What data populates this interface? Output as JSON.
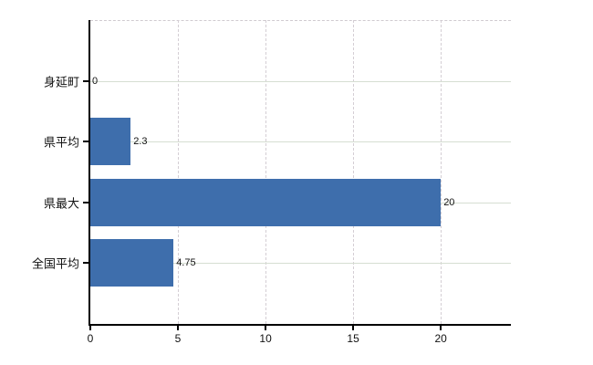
{
  "chart_data": {
    "type": "bar",
    "orientation": "horizontal",
    "categories": [
      "身延町",
      "県平均",
      "県最大",
      "全国平均"
    ],
    "values": [
      0,
      2.3,
      20,
      4.75
    ],
    "value_labels": [
      "0",
      "2.3",
      "20",
      "4.75"
    ],
    "xticks": [
      0,
      5,
      10,
      15,
      20
    ],
    "xtick_labels": [
      "0",
      "5",
      "10",
      "15",
      "20"
    ],
    "xlim": [
      0,
      24
    ],
    "grid": {
      "vertical_style": "dashed",
      "horizontal_style": "solid",
      "top_border_style": "dashed"
    },
    "colors": {
      "bar": "#3e6eac",
      "vertical_gridline": "#d4ced4",
      "horizontal_gridline": "#d6ded2",
      "top_border": "#d0cbd0",
      "axis": "#000000",
      "text": "#111111",
      "background": "#ffffff"
    },
    "legend": false
  }
}
